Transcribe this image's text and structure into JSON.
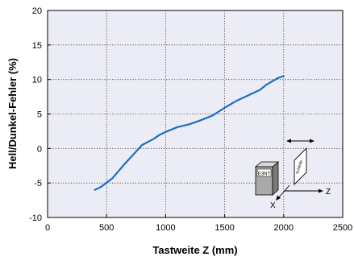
{
  "chart_data": {
    "type": "line",
    "xlabel": "Tastweite Z (mm)",
    "ylabel": "Hell/Dunkel-Fehler (%)",
    "xlim": [
      0,
      2500
    ],
    "ylim": [
      -10,
      20
    ],
    "xticks": [
      0,
      500,
      1000,
      1500,
      2000,
      2500
    ],
    "yticks": [
      -10,
      -5,
      0,
      5,
      10,
      15,
      20
    ],
    "grid": true,
    "plot_background": "#ececf6",
    "line_color": "#1f6fbf",
    "series": [
      {
        "x": [
          400,
          450,
          550,
          650,
          730,
          800,
          900,
          950,
          1000,
          1100,
          1200,
          1300,
          1400,
          1500,
          1600,
          1700,
          1800,
          1850,
          1900,
          1950,
          2000
        ],
        "y": [
          -6,
          -5.6,
          -4.3,
          -2.3,
          -0.8,
          0.5,
          1.4,
          2.0,
          2.4,
          3.1,
          3.5,
          4.1,
          4.8,
          5.9,
          6.9,
          7.7,
          8.5,
          9.2,
          9.7,
          10.2,
          10.5
        ]
      }
    ],
    "annotations": {
      "sensor_label": "E3NT",
      "reflector_label": "Schleife",
      "axis_z_label": "Z",
      "axis_x_label": "X"
    }
  }
}
